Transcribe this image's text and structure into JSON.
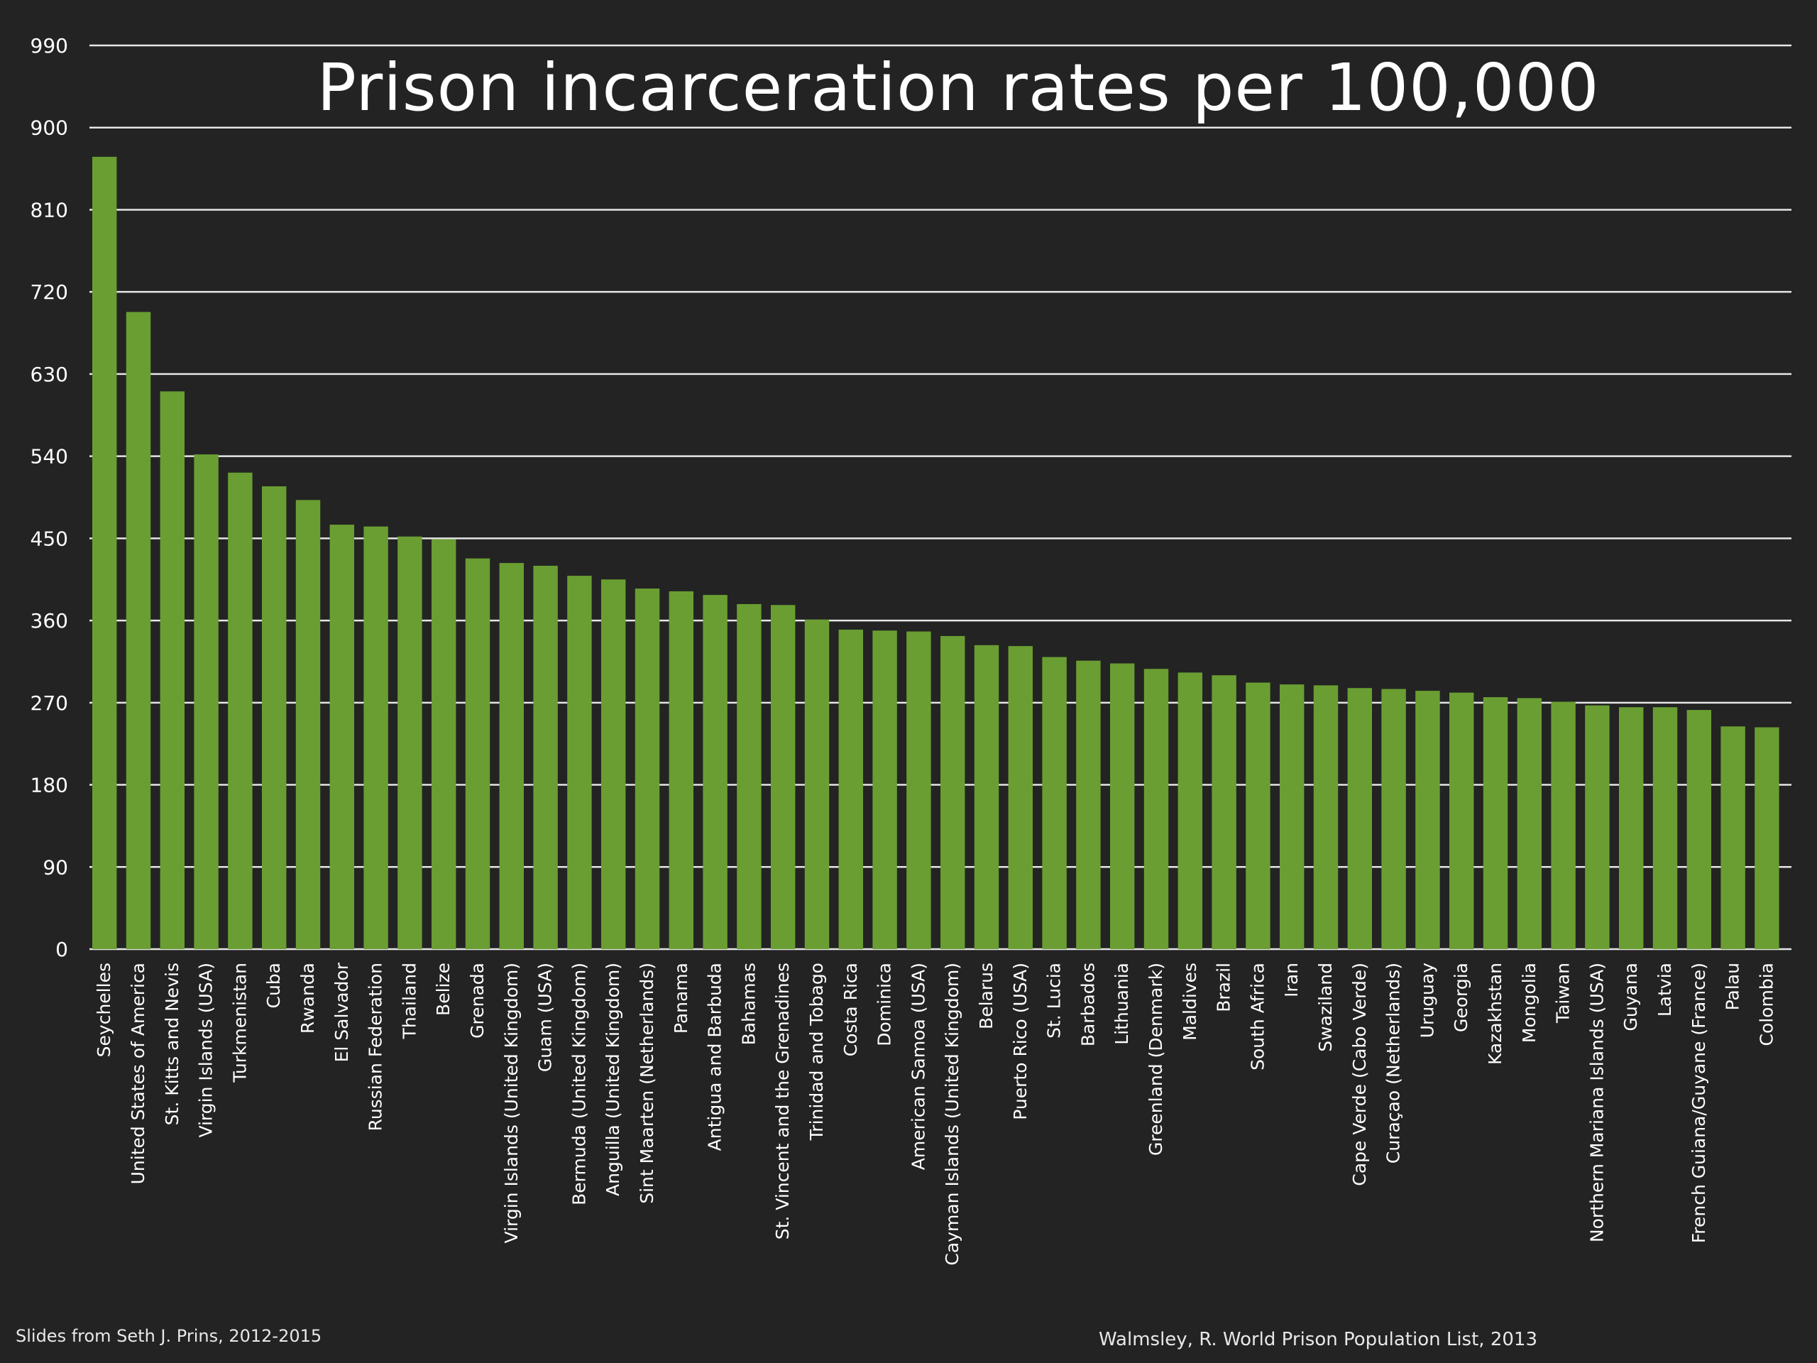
{
  "slide": {
    "footer_left": "Slides from Seth J. Prins, 2012-2015",
    "footer_right": "Walmsley, R. World Prison Population List, 2013"
  },
  "colors": {
    "background": "#232323",
    "bar": "#6a9e32",
    "gridline": "#e6e6e6",
    "text": "#ffffff"
  },
  "chart_data": {
    "type": "bar",
    "title": "Prison incarceration rates per 100,000",
    "xlabel": "",
    "ylabel": "",
    "ylim": [
      0,
      990
    ],
    "yticks": [
      0,
      90,
      180,
      270,
      360,
      450,
      540,
      630,
      720,
      810,
      900,
      990
    ],
    "grid": true,
    "categories": [
      "Seychelles",
      "United States of America",
      "St. Kitts and Nevis",
      "Virgin Islands (USA)",
      "Turkmenistan",
      "Cuba",
      "Rwanda",
      "El Salvador",
      "Russian Federation",
      "Thailand",
      "Belize",
      "Grenada",
      "Virgin Islands (United Kingdom)",
      "Guam (USA)",
      "Bermuda (United Kingdom)",
      "Anguilla (United Kingdom)",
      "Sint Maarten (Netherlands)",
      "Panama",
      "Antigua and Barbuda",
      "Bahamas",
      "St. Vincent and the Grenadines",
      "Trinidad and Tobago",
      "Costa Rica",
      "Dominica",
      "American Samoa (USA)",
      "Cayman Islands (United Kingdom)",
      "Belarus",
      "Puerto Rico (USA)",
      "St. Lucia",
      "Barbados",
      "Lithuania",
      "Greenland (Denmark)",
      "Maldives",
      "Brazil",
      "South Africa",
      "Iran",
      "Swaziland",
      "Cape Verde (Cabo Verde)",
      "Curaçao (Netherlands)",
      "Uruguay",
      "Georgia",
      "Kazakhstan",
      "Mongolia",
      "Taiwan",
      "Northern Mariana Islands (USA)",
      "Guyana",
      "Latvia",
      "French Guiana/Guyane (France)",
      "Palau",
      "Colombia"
    ],
    "values": [
      868,
      698,
      611,
      542,
      522,
      507,
      492,
      465,
      463,
      452,
      449,
      428,
      423,
      420,
      409,
      405,
      395,
      392,
      388,
      378,
      377,
      361,
      350,
      349,
      348,
      343,
      333,
      332,
      320,
      316,
      313,
      307,
      303,
      300,
      292,
      290,
      289,
      286,
      285,
      283,
      281,
      276,
      275,
      271,
      267,
      265,
      265,
      262,
      244,
      243
    ]
  }
}
